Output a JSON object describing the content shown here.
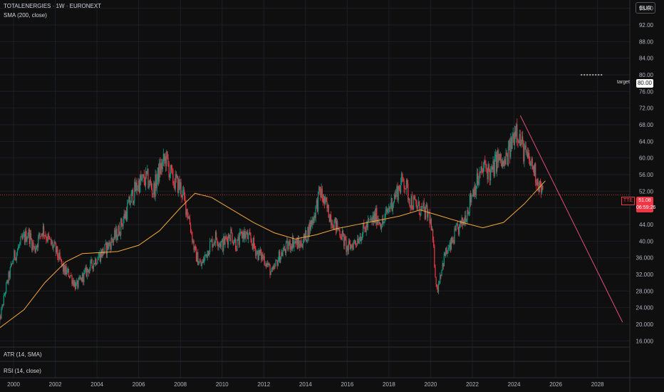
{
  "header": {
    "title": "TOTALENERGIES · 1W · EURONEXT",
    "indicator": "SMA (200, close)",
    "currency": "EUR"
  },
  "panes": {
    "atr_label": "ATR (14, SMA)",
    "rsi_label": "RSI (14, close)"
  },
  "target": {
    "label": "target",
    "value": "80.00"
  },
  "last_price": {
    "symbol": "TTE",
    "price": "51.08",
    "countdown": "06:59:26"
  },
  "colors": {
    "up": "#089981",
    "down": "#f23645",
    "sma": "#f0a73c",
    "trendline": "#e04c7a",
    "background": "#0f0f0f"
  },
  "chart_data": {
    "type": "line",
    "title": "TOTALENERGIES · 1W · EURONEXT",
    "y_ticks": [
      "96.00",
      "92.00",
      "88.00",
      "84.00",
      "80.00",
      "76.00",
      "72.00",
      "68.00",
      "64.00",
      "60.00",
      "56.00",
      "52.00",
      "48.00",
      "44.00",
      "40.00",
      "36.000",
      "32.000",
      "28.000",
      "24.000",
      "20.000",
      "16.000"
    ],
    "x_ticks": [
      "2000",
      "2002",
      "2004",
      "2006",
      "2008",
      "2010",
      "2012",
      "2014",
      "2016",
      "2018",
      "2020",
      "2022",
      "2024",
      "2026",
      "2028"
    ],
    "ylim": [
      14.5,
      98
    ],
    "xlim": [
      1999.35,
      2029.55
    ],
    "grid": true,
    "series": [
      {
        "name": "TOTALENERGIES",
        "style": "candles",
        "x": [
          1999.3,
          1999.6,
          2000.0,
          2000.4,
          2000.7,
          2001.0,
          2001.4,
          2001.7,
          2002.0,
          2002.4,
          2002.7,
          2003.0,
          2003.4,
          2003.7,
          2004.0,
          2004.4,
          2004.7,
          2005.0,
          2005.4,
          2005.7,
          2006.0,
          2006.4,
          2006.7,
          2007.0,
          2007.3,
          2007.6,
          2008.0,
          2008.4,
          2008.7,
          2009.0,
          2009.4,
          2009.7,
          2010.0,
          2010.4,
          2010.7,
          2011.0,
          2011.4,
          2011.7,
          2012.0,
          2012.4,
          2012.7,
          2013.0,
          2013.4,
          2013.7,
          2014.0,
          2014.4,
          2014.7,
          2015.0,
          2015.4,
          2015.7,
          2016.0,
          2016.4,
          2016.7,
          2017.0,
          2017.4,
          2017.7,
          2018.0,
          2018.4,
          2018.7,
          2019.0,
          2019.4,
          2019.7,
          2019.95,
          2020.1,
          2020.3,
          2020.5,
          2020.7,
          2020.9,
          2021.2,
          2021.5,
          2021.8,
          2022.0,
          2022.3,
          2022.6,
          2022.9,
          2023.2,
          2023.5,
          2023.8,
          2024.1,
          2024.3,
          2024.6,
          2024.9,
          2025.1,
          2025.4
        ],
        "values": [
          20,
          28,
          36,
          40,
          42,
          38,
          43,
          40,
          38,
          33,
          32,
          29,
          32,
          34,
          36,
          38,
          40,
          42,
          47,
          51,
          54,
          55,
          52,
          57,
          60,
          55,
          53,
          46,
          37,
          34,
          39,
          41,
          39,
          42,
          39,
          42,
          40,
          37,
          36,
          32,
          36,
          38,
          40,
          39,
          41,
          46,
          52,
          48,
          44,
          42,
          38,
          40,
          42,
          44,
          46,
          44,
          48,
          52,
          55,
          50,
          48,
          47,
          46,
          40,
          28,
          33,
          37,
          38,
          42,
          44,
          48,
          52,
          55,
          58,
          56,
          60,
          58,
          62,
          68,
          64,
          60,
          58,
          55,
          51
        ]
      },
      {
        "name": "SMA (200, close)",
        "style": "line",
        "x": [
          1999.3,
          2000.5,
          2001.5,
          2002.5,
          2003.3,
          2004.0,
          2005.0,
          2006.0,
          2007.0,
          2008.0,
          2008.7,
          2009.5,
          2010.5,
          2011.5,
          2012.5,
          2013.5,
          2014.5,
          2015.5,
          2016.5,
          2017.5,
          2018.5,
          2019.5,
          2020.5,
          2021.5,
          2022.5,
          2023.5,
          2024.5,
          2025.5
        ],
        "values": [
          19,
          23.5,
          30,
          35,
          37,
          37.2,
          37.5,
          39,
          42.5,
          48,
          51.5,
          50.5,
          47.5,
          44.5,
          42,
          40.5,
          41.5,
          43,
          44,
          45,
          46,
          47.5,
          46,
          44.5,
          43.2,
          44.5,
          49,
          54.5
        ]
      },
      {
        "name": "trendline",
        "style": "line",
        "x": [
          2024.3,
          2029.2
        ],
        "values": [
          70.2,
          20.5
        ]
      },
      {
        "name": "target",
        "style": "line",
        "x": [
          2027.2,
          2029.2
        ],
        "values": [
          80,
          80
        ]
      }
    ]
  }
}
